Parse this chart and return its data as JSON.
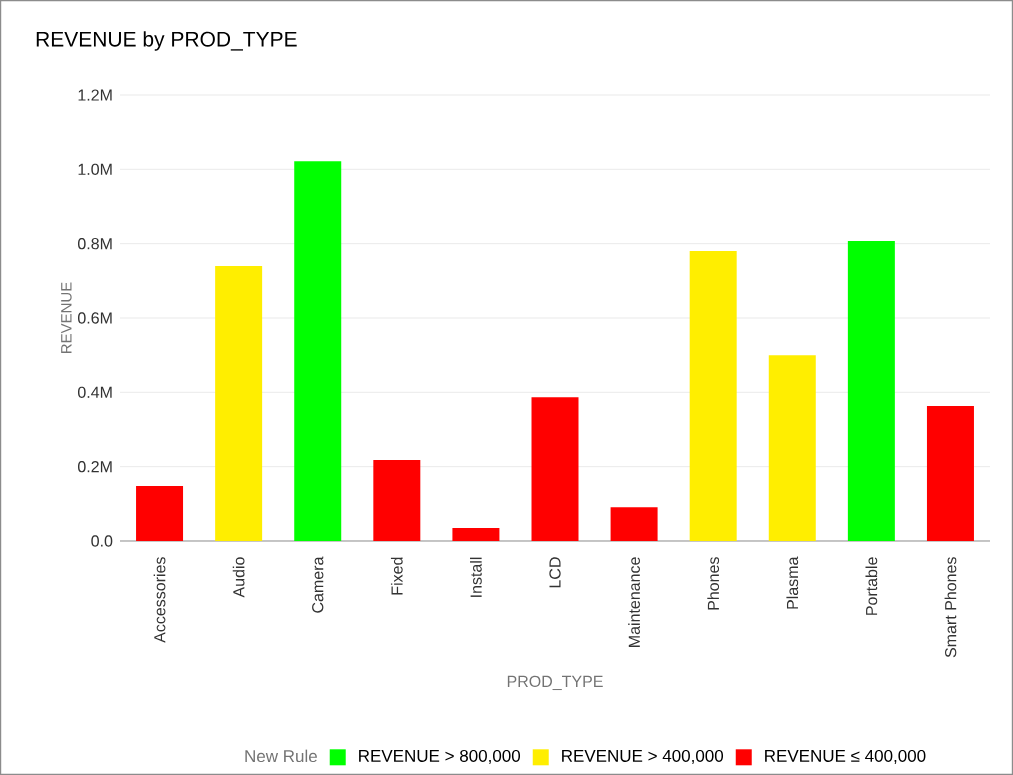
{
  "chart_data": {
    "type": "bar",
    "title": "REVENUE by PROD_TYPE",
    "xlabel": "PROD_TYPE",
    "ylabel": "REVENUE",
    "legend_title": "New Rule",
    "categories": [
      "Accessories",
      "Audio",
      "Camera",
      "Fixed",
      "Install",
      "LCD",
      "Maintenance",
      "Phones",
      "Plasma",
      "Portable",
      "Smart Phones"
    ],
    "series": [
      {
        "name": "REVENUE > 800,000",
        "color": "#00ff00",
        "values": [
          null,
          null,
          1.022,
          null,
          null,
          null,
          null,
          null,
          null,
          0.807,
          null
        ]
      },
      {
        "name": "REVENUE > 400,000",
        "color": "#ffee00",
        "values": [
          null,
          0.74,
          null,
          null,
          null,
          null,
          null,
          0.78,
          0.5,
          null,
          null
        ]
      },
      {
        "name": "REVENUE ≤ 400,000",
        "color": "#ff0000",
        "values": [
          0.148,
          null,
          null,
          0.218,
          0.035,
          0.387,
          0.091,
          null,
          null,
          null,
          0.363
        ]
      }
    ],
    "ylim": [
      0,
      1.2
    ],
    "yticks": [
      {
        "value": 0,
        "label": "0.0"
      },
      {
        "value": 0.2,
        "label": "0.2M"
      },
      {
        "value": 0.4,
        "label": "0.4M"
      },
      {
        "value": 0.6,
        "label": "0.6M"
      },
      {
        "value": 0.8,
        "label": "0.8M"
      },
      {
        "value": 1.0,
        "label": "1.0M"
      },
      {
        "value": 1.2,
        "label": "1.2M"
      }
    ],
    "grid": "y",
    "legend": "bottom"
  }
}
